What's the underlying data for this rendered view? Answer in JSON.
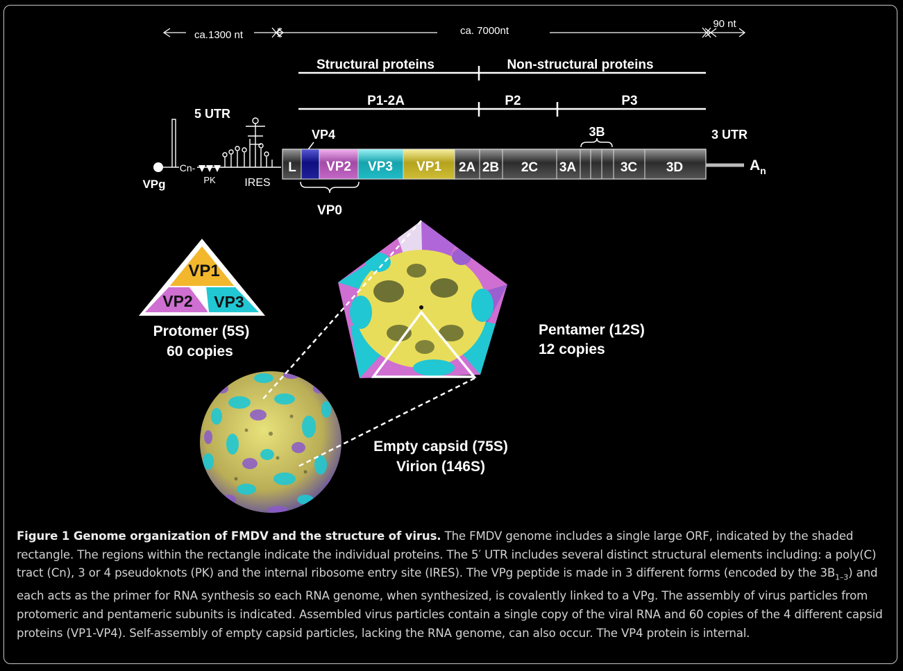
{
  "genome": {
    "left_span": "ca.1300 nt",
    "middle_span": "ca. 7000nt",
    "right_span": "90 nt",
    "structural": "Structural proteins",
    "nonstructural": "Non-structural proteins",
    "p1": "P1-2A",
    "p2": "P2",
    "p3": "P3",
    "utr5": "5 UTR",
    "utr3": "3 UTR",
    "vp4_label": "VP4",
    "b3_label": "3B",
    "vpg": "VPg",
    "cn": "Cn-",
    "pk": "PK",
    "ires": "IRES",
    "vp0": "VP0",
    "polya": "A",
    "polya_sub": "n",
    "segments": [
      "L",
      "VP2",
      "VP3",
      "VP1",
      "2A",
      "2B",
      "2C",
      "3A",
      "3C",
      "3D"
    ]
  },
  "protomer": {
    "vp1": "VP1",
    "vp2": "VP2",
    "vp3": "VP3",
    "line1": "Protomer (5S)",
    "line2": "60 copies"
  },
  "pentamer": {
    "line1": "Pentamer (12S)",
    "line2": "12 copies"
  },
  "capsid": {
    "line1": "Empty capsid (75S)",
    "line2": "Virion (146S)"
  },
  "caption": {
    "lead": "Figure 1 Genome organization of FMDV and the structure of virus.",
    "text1": " The FMDV genome includes a single large ORF, indicated by the shaded rectangle. The regions within the rectangle indicate the individual proteins. The 5′ UTR includes several distinct structural elements including: a poly(C) tract (Cn), 3 or 4 pseudoknots (PK) and the internal ribosome entry site (IRES). The VPg peptide is made in 3 different forms (encoded by the 3B",
    "sub": "1–3",
    "text2": ") and each acts as the primer for RNA synthesis so each RNA genome, when synthesized, is covalently linked to a VPg. The assembly of virus particles from protomeric and pentameric subunits is indicated. Assembled virus particles contain a single copy of the viral RNA and 60 copies of the 4 different capsid proteins (VP1-VP4). Self-assembly of empty capsid particles, lacking the RNA genome, can also occur. The VP4 protein is internal."
  },
  "colors": {
    "background": "#000000",
    "vp1": "#e8d84a",
    "vp2": "#cf6fd2",
    "vp3": "#21c7d2",
    "vp4": "#14148c",
    "protomer_vp1": "#f2b72c",
    "orf_segment": "#3a3a3a"
  }
}
